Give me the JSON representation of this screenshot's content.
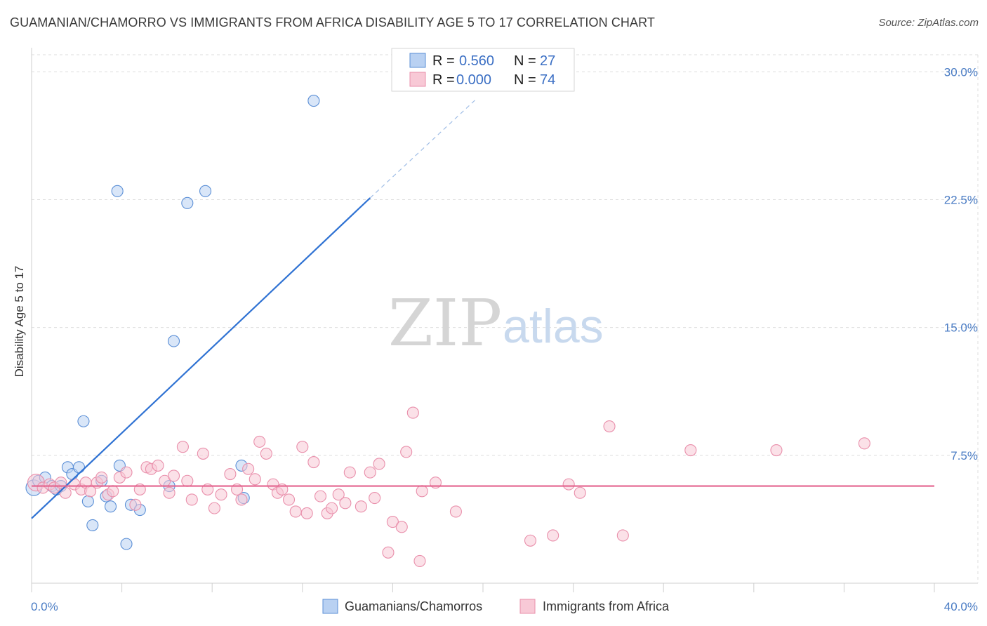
{
  "title": "GUAMANIAN/CHAMORRO VS IMMIGRANTS FROM AFRICA DISABILITY AGE 5 TO 17 CORRELATION CHART",
  "source": "Source: ZipAtlas.com",
  "watermark": {
    "part1": "ZIP",
    "part2": "atlas"
  },
  "colors": {
    "blue_fill": "#b9d1f2",
    "blue_stroke": "#5b8fd6",
    "blue_line": "#2f72d3",
    "pink_fill": "#f8c9d6",
    "pink_stroke": "#e98fab",
    "pink_line": "#e3628d",
    "grid": "#dddddd",
    "axis_text": "#4a7cc4"
  },
  "legend": {
    "rows": [
      {
        "r_label": "R =",
        "r_value": "0.560",
        "n_label": "N =",
        "n_value": "27"
      },
      {
        "r_label": "R =",
        "r_value": "0.000",
        "n_label": "N =",
        "n_value": "74"
      }
    ]
  },
  "bottom_legend": [
    "Guamanians/Chamorros",
    "Immigrants from Africa"
  ],
  "chart_data": {
    "type": "scatter",
    "title": "GUAMANIAN/CHAMORRO VS IMMIGRANTS FROM AFRICA DISABILITY AGE 5 TO 17 CORRELATION CHART",
    "xlabel": "",
    "ylabel": "Disability Age 5 to 17",
    "xlim": [
      0,
      40
    ],
    "ylim": [
      0,
      31
    ],
    "x_tick_labels": [
      "0.0%",
      "40.0%"
    ],
    "y_ticks": [
      7.5,
      15.0,
      22.5,
      30.0
    ],
    "y_tick_labels": [
      "7.5%",
      "15.0%",
      "22.5%",
      "30.0%"
    ],
    "grid": true,
    "legend_position": "top-center",
    "series": [
      {
        "name": "Guamanians/Chamorros",
        "R": 0.56,
        "N": 27,
        "trend": {
          "x0": 0,
          "y0": 3.8,
          "x1": 15,
          "y1": 22.6,
          "dashed_to_x": 19.7,
          "dashed_to_y": 28.4
        },
        "points": [
          [
            0.1,
            5.6,
            1.4
          ],
          [
            0.3,
            6.0,
            1
          ],
          [
            0.6,
            6.2,
            1
          ],
          [
            0.9,
            5.7,
            1
          ],
          [
            1.1,
            5.5,
            1
          ],
          [
            1.6,
            6.8,
            1
          ],
          [
            1.8,
            6.4,
            1
          ],
          [
            2.1,
            6.8,
            1
          ],
          [
            2.3,
            9.5,
            1
          ],
          [
            2.5,
            4.8,
            1
          ],
          [
            2.7,
            3.4,
            1
          ],
          [
            3.1,
            6.0,
            1
          ],
          [
            3.3,
            5.1,
            1
          ],
          [
            3.5,
            4.5,
            1
          ],
          [
            3.8,
            23.0,
            1
          ],
          [
            3.9,
            6.9,
            1
          ],
          [
            4.2,
            2.3,
            1
          ],
          [
            4.4,
            4.6,
            1
          ],
          [
            4.8,
            4.3,
            1
          ],
          [
            6.1,
            5.7,
            1
          ],
          [
            6.3,
            14.2,
            1
          ],
          [
            6.9,
            22.3,
            1
          ],
          [
            7.7,
            23.0,
            1
          ],
          [
            9.3,
            6.9,
            1
          ],
          [
            9.4,
            5.0,
            1
          ],
          [
            12.5,
            28.3,
            1
          ],
          [
            1.3,
            5.7,
            1
          ]
        ]
      },
      {
        "name": "Immigrants from Africa",
        "R": 0.0,
        "N": 74,
        "trend": {
          "x0": 0,
          "y0": 5.7,
          "x1": 40,
          "y1": 5.7
        },
        "points": [
          [
            0.2,
            5.9,
            1.5
          ],
          [
            0.5,
            5.6,
            1
          ],
          [
            0.8,
            5.8,
            1
          ],
          [
            1.0,
            5.6,
            1
          ],
          [
            1.3,
            5.9,
            1
          ],
          [
            1.5,
            5.3,
            1
          ],
          [
            1.9,
            5.8,
            1
          ],
          [
            2.2,
            5.5,
            1
          ],
          [
            2.4,
            5.9,
            1
          ],
          [
            2.6,
            5.4,
            1
          ],
          [
            2.9,
            5.9,
            1
          ],
          [
            3.1,
            6.2,
            1
          ],
          [
            3.4,
            5.2,
            1
          ],
          [
            3.6,
            5.4,
            1
          ],
          [
            3.9,
            6.2,
            1
          ],
          [
            4.2,
            6.5,
            1
          ],
          [
            4.6,
            4.6,
            1
          ],
          [
            4.8,
            5.5,
            1
          ],
          [
            5.1,
            6.8,
            1
          ],
          [
            5.3,
            6.7,
            1
          ],
          [
            5.6,
            6.9,
            1
          ],
          [
            5.9,
            6.0,
            1
          ],
          [
            6.1,
            5.3,
            1
          ],
          [
            6.3,
            6.3,
            1
          ],
          [
            6.7,
            8.0,
            1
          ],
          [
            6.9,
            6.0,
            1
          ],
          [
            7.1,
            4.9,
            1
          ],
          [
            7.6,
            7.6,
            1
          ],
          [
            7.8,
            5.5,
            1
          ],
          [
            8.1,
            4.4,
            1
          ],
          [
            8.4,
            5.2,
            1
          ],
          [
            8.8,
            6.4,
            1
          ],
          [
            9.1,
            5.5,
            1
          ],
          [
            9.3,
            4.9,
            1
          ],
          [
            9.6,
            6.7,
            1
          ],
          [
            9.9,
            6.1,
            1
          ],
          [
            10.1,
            8.3,
            1
          ],
          [
            10.4,
            7.6,
            1
          ],
          [
            10.7,
            5.8,
            1
          ],
          [
            10.9,
            5.3,
            1
          ],
          [
            11.1,
            5.5,
            1
          ],
          [
            11.4,
            4.9,
            1
          ],
          [
            11.7,
            4.2,
            1
          ],
          [
            12.0,
            8.0,
            1
          ],
          [
            12.2,
            4.1,
            1
          ],
          [
            12.5,
            7.1,
            1
          ],
          [
            12.8,
            5.1,
            1
          ],
          [
            13.1,
            4.1,
            1
          ],
          [
            13.3,
            4.4,
            1
          ],
          [
            13.6,
            5.2,
            1
          ],
          [
            13.9,
            4.7,
            1
          ],
          [
            14.1,
            6.5,
            1
          ],
          [
            14.6,
            4.5,
            1
          ],
          [
            15.0,
            6.5,
            1
          ],
          [
            15.2,
            5.0,
            1
          ],
          [
            15.4,
            7.0,
            1
          ],
          [
            15.8,
            1.8,
            1
          ],
          [
            16.0,
            3.6,
            1
          ],
          [
            16.4,
            3.3,
            1
          ],
          [
            16.6,
            7.7,
            1
          ],
          [
            16.9,
            10.0,
            1
          ],
          [
            17.2,
            1.3,
            1
          ],
          [
            17.3,
            5.4,
            1
          ],
          [
            17.9,
            5.9,
            1
          ],
          [
            18.8,
            4.2,
            1
          ],
          [
            22.1,
            2.5,
            1
          ],
          [
            23.1,
            2.8,
            1
          ],
          [
            23.8,
            5.8,
            1
          ],
          [
            24.3,
            5.3,
            1
          ],
          [
            25.6,
            9.2,
            1
          ],
          [
            26.2,
            2.8,
            1
          ],
          [
            29.2,
            7.8,
            1
          ],
          [
            33.0,
            7.8,
            1
          ],
          [
            36.9,
            8.2,
            1
          ]
        ]
      }
    ]
  }
}
